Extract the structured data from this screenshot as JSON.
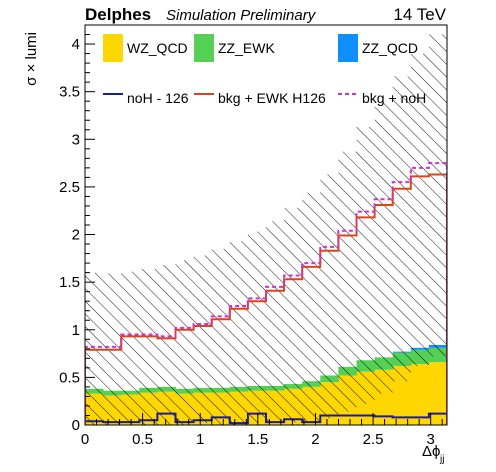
{
  "header": {
    "brand": "Delphes",
    "subtitle": "Simulation Preliminary",
    "energy": "14 TeV"
  },
  "chart_data": {
    "type": "histogram",
    "ylabel": "σ × lumi",
    "xlabel": "Δϕ",
    "xlabel_sub": "jj",
    "xlim": [
      0,
      3.1416
    ],
    "ylim": [
      0,
      4.2
    ],
    "x_ticks": [
      "0",
      "0.5",
      "1",
      "1.5",
      "2",
      "2.5",
      "3"
    ],
    "y_ticks": [
      "0",
      "0.5",
      "1",
      "1.5",
      "2",
      "2.5",
      "3",
      "3.5",
      "4"
    ],
    "bin_edges": [
      0,
      0.1571,
      0.3142,
      0.4712,
      0.6283,
      0.7854,
      0.9425,
      1.0996,
      1.2566,
      1.4137,
      1.5708,
      1.7279,
      1.885,
      2.042,
      2.1991,
      2.3562,
      2.5133,
      2.6704,
      2.8274,
      2.9845,
      3.1416
    ],
    "stack": [
      {
        "name": "WZ_QCD",
        "color": "#ffd700",
        "values": [
          0.33,
          0.31,
          0.32,
          0.34,
          0.35,
          0.33,
          0.34,
          0.34,
          0.35,
          0.36,
          0.36,
          0.38,
          0.4,
          0.45,
          0.52,
          0.56,
          0.58,
          0.62,
          0.64,
          0.66
        ]
      },
      {
        "name": "ZZ_EWK",
        "color": "#54d054",
        "values": [
          0.05,
          0.05,
          0.04,
          0.05,
          0.05,
          0.05,
          0.05,
          0.05,
          0.05,
          0.05,
          0.05,
          0.05,
          0.06,
          0.07,
          0.09,
          0.12,
          0.13,
          0.14,
          0.15,
          0.15
        ]
      },
      {
        "name": "ZZ_QCD",
        "color": "#0f8fff",
        "values": [
          0.0,
          0.0,
          0.0,
          0.0,
          0.0,
          0.0,
          0.0,
          0.0,
          0.0,
          0.0,
          0.0,
          0.0,
          0.0,
          0.0,
          0.0,
          0.0,
          0.0,
          0.01,
          0.02,
          0.03
        ]
      }
    ],
    "lines": [
      {
        "name": "noH - 126",
        "color": "#1a1aa6",
        "values": [
          0.04,
          0.03,
          0.03,
          0.05,
          0.12,
          0.03,
          0.05,
          0.08,
          0.02,
          0.12,
          0.03,
          0.06,
          0.03,
          0.1,
          0.1,
          0.1,
          0.09,
          0.08,
          0.08,
          0.12
        ]
      },
      {
        "name": "bkg + EWK H126",
        "color": "#d9461a",
        "values": [
          0.79,
          0.79,
          0.93,
          0.93,
          0.91,
          1.0,
          1.04,
          1.11,
          1.22,
          1.3,
          1.41,
          1.53,
          1.66,
          1.83,
          1.99,
          2.18,
          2.31,
          2.48,
          2.61,
          2.63
        ]
      },
      {
        "name": "bkg + noH",
        "color": "#cc33cc",
        "dashed": true,
        "values": [
          0.82,
          0.82,
          0.95,
          0.95,
          0.93,
          1.02,
          1.06,
          1.14,
          1.25,
          1.33,
          1.45,
          1.57,
          1.7,
          1.87,
          2.04,
          2.24,
          2.37,
          2.55,
          2.7,
          2.75
        ]
      }
    ],
    "hatch_upper": [
      1.6,
      1.59,
      1.61,
      1.64,
      1.68,
      1.73,
      1.78,
      1.85,
      1.93,
      2.03,
      2.14,
      2.28,
      2.44,
      2.63,
      2.87,
      3.13,
      3.4,
      3.66,
      3.9,
      4.1
    ],
    "hatch_lower": [
      0.0,
      0.0,
      0.01,
      0.0,
      0.0,
      0.0,
      0.02,
      0.0,
      0.0,
      0.02,
      0.03,
      0.03,
      0.04,
      0.07,
      0.14,
      0.22,
      0.33,
      0.46,
      0.62,
      0.72
    ],
    "legend": [
      {
        "label": "WZ_QCD",
        "kind": "fill",
        "color": "#ffd700"
      },
      {
        "label": "ZZ_EWK",
        "kind": "fill",
        "color": "#54d054"
      },
      {
        "label": "ZZ_QCD",
        "kind": "fill",
        "color": "#0f8fff"
      },
      {
        "label": "noH - 126",
        "kind": "line",
        "color": "#1a1aa6"
      },
      {
        "label": "bkg + EWK H126",
        "kind": "line",
        "color": "#d9461a"
      },
      {
        "label": "bkg + noH",
        "kind": "dash",
        "color": "#cc33cc"
      }
    ]
  }
}
